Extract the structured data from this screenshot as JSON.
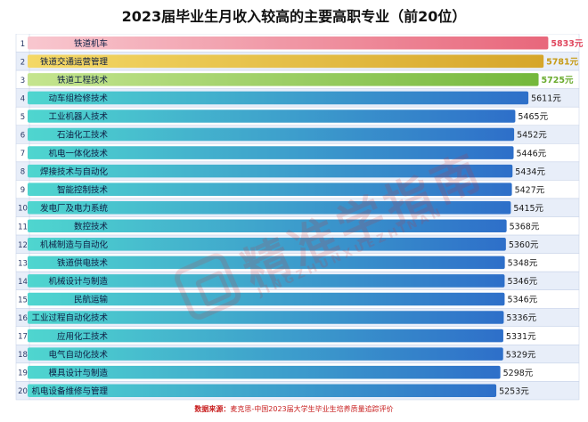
{
  "title": "2023届毕业生月收入较高的主要高职专业（前20位）",
  "source": {
    "label": "数据来源：",
    "text": "麦克思-中国2023届大学生毕业生培养质量追踪评价"
  },
  "watermark": {
    "cn": "精准学指南",
    "en": "JINGZHUNXUEZHINAN"
  },
  "chart_data": {
    "type": "bar",
    "orientation": "horizontal",
    "ranks": [
      "1",
      "2",
      "3",
      "4",
      "5",
      "6",
      "7",
      "8",
      "9",
      "10",
      "11",
      "12",
      "13",
      "14",
      "15",
      "16",
      "17",
      "18",
      "19",
      "20"
    ],
    "categories": [
      "铁道机车",
      "铁道交通运营管理",
      "铁道工程技术",
      "动车组检修技术",
      "工业机器人技术",
      "石油化工技术",
      "机电一体化技术",
      "焊接技术与自动化",
      "智能控制技术",
      "发电厂及电力系统",
      "数控技术",
      "机械制造与自动化",
      "铁道供电技术",
      "机械设计与制造",
      "民航运输",
      "工业过程自动化技术",
      "应用化工技术",
      "电气自动化技术",
      "模具设计与制造",
      "机电设备维修与管理"
    ],
    "values": [
      5833,
      5781,
      5725,
      5611,
      5465,
      5452,
      5446,
      5434,
      5427,
      5415,
      5368,
      5360,
      5348,
      5346,
      5346,
      5336,
      5331,
      5329,
      5298,
      5253
    ],
    "value_labels": [
      "5833元",
      "5781元",
      "5725元",
      "5611元",
      "5465元",
      "5452元",
      "5446元",
      "5434元",
      "5427元",
      "5415元",
      "5368元",
      "5360元",
      "5348元",
      "5346元",
      "5346元",
      "5336元",
      "5331元",
      "5329元",
      "5298元",
      "5253元"
    ],
    "colors": {
      "top1": [
        "#f8c7cf",
        "#e8677b"
      ],
      "top2": [
        "#f4d866",
        "#d6a62a"
      ],
      "top3": [
        "#c5e58f",
        "#74b83c"
      ],
      "rest": [
        "#4fd6cf",
        "#2e6fc9"
      ],
      "label_top1": "#e0475e",
      "label_top2": "#c79a14",
      "label_top3": "#6aab2e",
      "label_rest": "#1a1a1a",
      "row_alt": "#e8eef9",
      "row_border": "#c3cfe6"
    },
    "grid": false,
    "legend": "none"
  }
}
